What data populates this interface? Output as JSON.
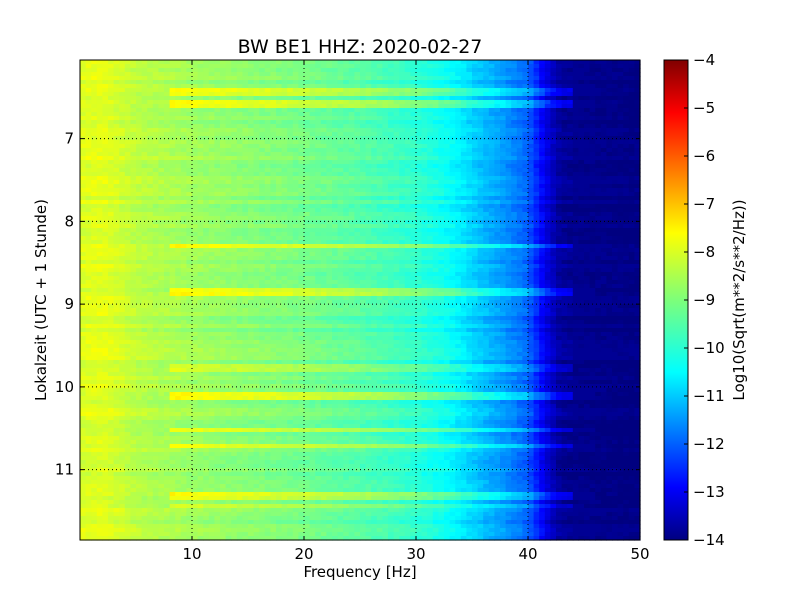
{
  "chart_data": {
    "type": "heatmap",
    "title": "BW BE1 HHZ: 2020-02-27",
    "xlabel": "Frequency [Hz]",
    "ylabel": "Lokalzeit (UTC + 1 Stunde)",
    "xlim": [
      0,
      50
    ],
    "ylim": [
      11.85,
      6.05
    ],
    "y_inverted": true,
    "x_ticks": [
      10,
      20,
      30,
      40,
      50
    ],
    "x_tick_labels": [
      "10",
      "20",
      "30",
      "40",
      "50"
    ],
    "y_ticks": [
      7,
      8,
      9,
      10,
      11
    ],
    "y_tick_labels": [
      "7",
      "8",
      "9",
      "10",
      "11"
    ],
    "grid": true,
    "colormap": "jet",
    "colorbar": {
      "label": "Log10(Sqrt(m**2/s**2/Hz))",
      "range": [
        -14,
        -4
      ],
      "ticks": [
        -4,
        -5,
        -6,
        -7,
        -8,
        -9,
        -10,
        -11,
        -12,
        -13,
        -14
      ],
      "tick_labels": [
        "−4",
        "−5",
        "−6",
        "−7",
        "−8",
        "−9",
        "−10",
        "−11",
        "−12",
        "−13",
        "−14"
      ]
    },
    "base_spectrum": {
      "frequency_hz": [
        0,
        2,
        5,
        10,
        15,
        20,
        25,
        30,
        33,
        36,
        38,
        40,
        41,
        42,
        43,
        50
      ],
      "level": [
        -8.1,
        -8.0,
        -8.4,
        -8.7,
        -8.9,
        -9.1,
        -9.4,
        -9.8,
        -10.2,
        -10.9,
        -11.3,
        -11.8,
        -12.6,
        -13.3,
        -13.8,
        -14.0
      ]
    },
    "bands": [
      {
        "time": 6.43,
        "level_offset": 0.8,
        "max_frequency_hz": 46
      },
      {
        "time": 6.58,
        "level_offset": 0.9,
        "max_frequency_hz": 46
      },
      {
        "time": 8.3,
        "level_offset": 0.8,
        "max_frequency_hz": 45
      },
      {
        "time": 8.85,
        "level_offset": 1.0,
        "max_frequency_hz": 46
      },
      {
        "time": 9.78,
        "level_offset": 0.6,
        "max_frequency_hz": 44
      },
      {
        "time": 10.1,
        "level_offset": 1.0,
        "max_frequency_hz": 46
      },
      {
        "time": 10.52,
        "level_offset": 0.9,
        "max_frequency_hz": 46
      },
      {
        "time": 10.72,
        "level_offset": 0.9,
        "max_frequency_hz": 46
      },
      {
        "time": 11.33,
        "level_offset": 0.9,
        "max_frequency_hz": 46
      },
      {
        "time": 11.45,
        "level_offset": 0.6,
        "max_frequency_hz": 45
      }
    ]
  }
}
